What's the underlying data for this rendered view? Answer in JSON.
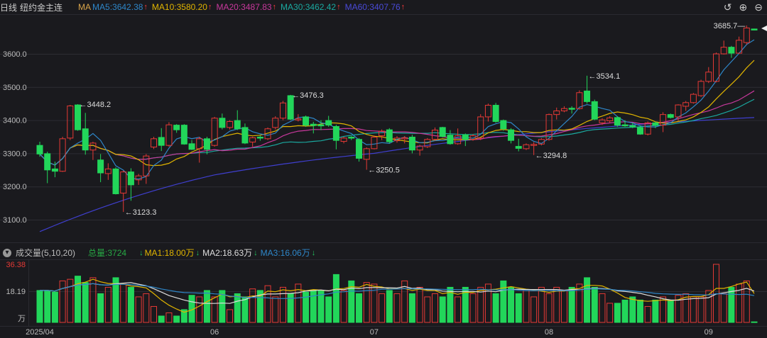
{
  "header": {
    "period": "日线",
    "name": "纽约金主连",
    "ma_label": "MA",
    "ma5": "MA5:3642.38",
    "ma10": "MA10:3580.20",
    "ma20": "MA20:3487.83",
    "ma30": "MA30:3462.42",
    "ma60": "MA60:3407.76",
    "arrow_up": "↑"
  },
  "toolbar": {
    "undo": "↺",
    "zoom_in": "⊕",
    "zoom_out": "⊖"
  },
  "volume_header": {
    "toggle": "▾",
    "title": "成交量(5,10,20)",
    "total": "总量:3724",
    "arrow_down": "↓",
    "ma1": "MA1:18.00万",
    "ma2": "MA2:18.63万",
    "ma3": "MA3:16.06万"
  },
  "colors": {
    "bg": "#1a1a1e",
    "up": "#e53935",
    "down": "#22d65a",
    "ma5": "#2e86c8",
    "ma10": "#e0b400",
    "ma20": "#c8389c",
    "ma30": "#1aa9a0",
    "ma60": "#3f3fcf",
    "vma1": "#e0b400",
    "vma2": "#dddddd",
    "vma3": "#2e86c8"
  },
  "chart_data": {
    "type": "candlestick",
    "y_ticks": [
      "3600.0",
      "3500.0",
      "3400.0",
      "3300.0",
      "3200.0",
      "3100.0"
    ],
    "y_tick_values": [
      3600,
      3500,
      3400,
      3300,
      3200,
      3100
    ],
    "x_ticks": [
      {
        "label": "2025/04",
        "index": 0
      },
      {
        "label": "06",
        "index": 23
      },
      {
        "label": "07",
        "index": 44
      },
      {
        "label": "08",
        "index": 67
      },
      {
        "label": "09",
        "index": 88
      }
    ],
    "ohlc": [
      [
        3324,
        3335,
        3290,
        3298
      ],
      [
        3299,
        3305,
        3210,
        3250
      ],
      [
        3253,
        3275,
        3228,
        3246
      ],
      [
        3246,
        3350,
        3244,
        3344
      ],
      [
        3346,
        3446,
        3340,
        3443
      ],
      [
        3446,
        3448.2,
        3368,
        3371
      ],
      [
        3374,
        3422,
        3296,
        3310
      ],
      [
        3310,
        3335,
        3280,
        3331
      ],
      [
        3280,
        3298,
        3213,
        3241
      ],
      [
        3239,
        3270,
        3220,
        3253
      ],
      [
        3253,
        3258,
        3176,
        3178
      ],
      [
        3180,
        3248,
        3123.3,
        3244
      ],
      [
        3244,
        3255,
        3157,
        3205
      ],
      [
        3220,
        3238,
        3205,
        3232
      ],
      [
        3232,
        3298,
        3208,
        3292
      ],
      [
        3319,
        3350,
        3313,
        3344
      ],
      [
        3348,
        3376,
        3307,
        3324
      ],
      [
        3324,
        3394,
        3320,
        3386
      ],
      [
        3385,
        3388,
        3362,
        3371
      ],
      [
        3385,
        3388,
        3326,
        3328
      ],
      [
        3329,
        3340,
        3310,
        3312
      ],
      [
        3314,
        3350,
        3272,
        3344
      ],
      [
        3344,
        3350,
        3297,
        3312
      ],
      [
        3324,
        3410,
        3320,
        3406
      ],
      [
        3406,
        3420,
        3372,
        3378
      ],
      [
        3378,
        3400,
        3372,
        3396
      ],
      [
        3399,
        3430,
        3370,
        3374
      ],
      [
        3378,
        3390,
        3328,
        3331
      ],
      [
        3334,
        3350,
        3320,
        3347
      ],
      [
        3349,
        3354,
        3338,
        3346
      ],
      [
        3344,
        3378,
        3340,
        3374
      ],
      [
        3378,
        3412,
        3372,
        3406
      ],
      [
        3406,
        3458,
        3400,
        3452
      ],
      [
        3474,
        3476.3,
        3400,
        3403
      ],
      [
        3402,
        3418,
        3396,
        3404
      ],
      [
        3410,
        3414,
        3380,
        3385
      ],
      [
        3388,
        3395,
        3360,
        3384
      ],
      [
        3386,
        3400,
        3370,
        3383
      ],
      [
        3399,
        3413,
        3380,
        3385
      ],
      [
        3381,
        3386,
        3312,
        3339
      ],
      [
        3336,
        3350,
        3330,
        3346
      ],
      [
        3349,
        3352,
        3340,
        3346
      ],
      [
        3342,
        3346,
        3275,
        3285
      ],
      [
        3282,
        3318,
        3250.5,
        3314
      ],
      [
        3314,
        3354,
        3312,
        3349
      ],
      [
        3353,
        3372,
        3340,
        3367
      ],
      [
        3371,
        3376,
        3330,
        3335
      ],
      [
        3338,
        3352,
        3332,
        3346
      ],
      [
        3344,
        3352,
        3330,
        3347
      ],
      [
        3349,
        3356,
        3300,
        3310
      ],
      [
        3310,
        3326,
        3293,
        3322
      ],
      [
        3320,
        3346,
        3316,
        3342
      ],
      [
        3342,
        3378,
        3338,
        3370
      ],
      [
        3378,
        3380,
        3348,
        3351
      ],
      [
        3355,
        3370,
        3326,
        3329
      ],
      [
        3329,
        3375,
        3326,
        3353
      ],
      [
        3356,
        3360,
        3322,
        3342
      ],
      [
        3342,
        3358,
        3338,
        3353
      ],
      [
        3346,
        3418,
        3340,
        3410
      ],
      [
        3410,
        3450,
        3396,
        3445
      ],
      [
        3445,
        3452,
        3392,
        3396
      ],
      [
        3399,
        3402,
        3368,
        3374
      ],
      [
        3371,
        3376,
        3330,
        3339
      ],
      [
        3321,
        3344,
        3306,
        3315
      ],
      [
        3314,
        3330,
        3310,
        3326
      ],
      [
        3325,
        3334,
        3294.8,
        3327
      ],
      [
        3328,
        3346,
        3324,
        3342
      ],
      [
        3342,
        3420,
        3338,
        3417
      ],
      [
        3417,
        3438,
        3402,
        3428
      ],
      [
        3428,
        3442,
        3424,
        3435
      ],
      [
        3436,
        3442,
        3420,
        3433
      ],
      [
        3435,
        3490,
        3432,
        3483
      ],
      [
        3488,
        3534.1,
        3450,
        3456
      ],
      [
        3456,
        3462,
        3400,
        3403
      ],
      [
        3392,
        3406,
        3386,
        3401
      ],
      [
        3398,
        3412,
        3392,
        3407
      ],
      [
        3408,
        3412,
        3380,
        3385
      ],
      [
        3386,
        3400,
        3380,
        3384
      ],
      [
        3384,
        3392,
        3376,
        3380
      ],
      [
        3378,
        3384,
        3356,
        3358
      ],
      [
        3358,
        3396,
        3354,
        3392
      ],
      [
        3392,
        3396,
        3376,
        3385
      ],
      [
        3385,
        3424,
        3364,
        3417
      ],
      [
        3417,
        3420,
        3405,
        3408
      ],
      [
        3410,
        3448,
        3398,
        3446
      ],
      [
        3442,
        3458,
        3428,
        3453
      ],
      [
        3453,
        3482,
        3450,
        3478
      ],
      [
        3474,
        3522,
        3470,
        3517
      ],
      [
        3517,
        3560,
        3512,
        3545
      ],
      [
        3517,
        3604,
        3514,
        3600
      ],
      [
        3600,
        3640,
        3598,
        3620
      ],
      [
        3620,
        3624,
        3588,
        3602
      ],
      [
        3602,
        3652,
        3600,
        3641
      ],
      [
        3634,
        3685.7,
        3628,
        3678
      ],
      [
        3675,
        3676,
        3671,
        3672
      ]
    ],
    "ma60_keypoints": [
      [
        0,
        3064
      ],
      [
        23,
        3235
      ],
      [
        44,
        3300
      ],
      [
        67,
        3365
      ],
      [
        94,
        3408
      ]
    ],
    "annotations": [
      {
        "index": 5,
        "price": 3448.2,
        "label": "3448.2",
        "side": "right"
      },
      {
        "index": 11,
        "price": 3123.3,
        "label": "3123.3",
        "side": "right"
      },
      {
        "index": 33,
        "price": 3476.3,
        "label": "3476.3",
        "side": "right"
      },
      {
        "index": 43,
        "price": 3250.5,
        "label": "3250.5",
        "side": "right"
      },
      {
        "index": 65,
        "price": 3294.8,
        "label": "3294.8",
        "side": "right"
      },
      {
        "index": 72,
        "price": 3534.1,
        "label": "3534.1",
        "side": "right"
      },
      {
        "index": 93,
        "price": 3685.7,
        "label": "3685.7",
        "side": "left"
      }
    ],
    "volume": {
      "unit": "万",
      "y_ticks": [
        "36.38",
        "18.19"
      ],
      "max": 36.38,
      "values": [
        20,
        20,
        19,
        26,
        27,
        29,
        25,
        28,
        18,
        22,
        28,
        24,
        22,
        16,
        18,
        10,
        4,
        6,
        4,
        8,
        17,
        16,
        20,
        16,
        20,
        8,
        18,
        16,
        21,
        20,
        23,
        16,
        22,
        18,
        24,
        19,
        20,
        20,
        16,
        30,
        20,
        26,
        18,
        25,
        24,
        18,
        20,
        18,
        26,
        18,
        22,
        16,
        18,
        16,
        22,
        16,
        22,
        18,
        22,
        24,
        18,
        26,
        22,
        18,
        20,
        16,
        22,
        18,
        22,
        20,
        22,
        24,
        28,
        22,
        18,
        12,
        12,
        14,
        16,
        14,
        10,
        14,
        16,
        14,
        17,
        18,
        16,
        16,
        20,
        36.38,
        18,
        22,
        24,
        26,
        0.37
      ]
    }
  }
}
